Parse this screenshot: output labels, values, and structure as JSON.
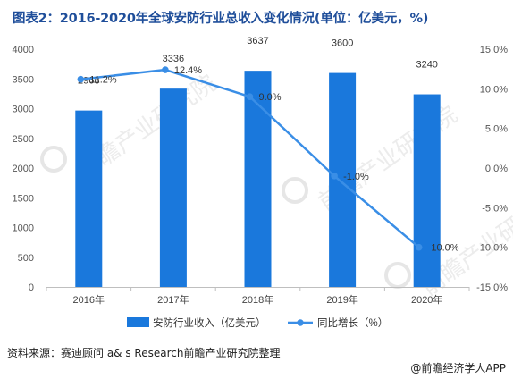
{
  "title": "图表2：2016-2020年全球安防行业总收入变化情况(单位：亿美元，%)",
  "source": "资料来源：赛迪顾问 a& s Research前瞻产业研究院整理",
  "credit": "@前瞻经济学人APP",
  "watermark": "前瞻产业研究院",
  "colors": {
    "bar": "#1a78dc",
    "line": "#3a8ee6",
    "title": "#1f4e9a"
  },
  "chart_data": {
    "type": "bar+line",
    "categories": [
      "2016年",
      "2017年",
      "2018年",
      "2019年",
      "2020年"
    ],
    "series": [
      {
        "name": "安防行业收入（亿美元）",
        "type": "bar",
        "axis": "left",
        "values": [
          2968,
          3336,
          3637,
          3600,
          3240
        ],
        "labels": [
          "2968",
          "3336",
          "3637",
          "3600",
          "3240"
        ]
      },
      {
        "name": "同比增长（%）",
        "type": "line",
        "axis": "right",
        "values": [
          11.2,
          12.4,
          9.0,
          -1.0,
          -10.0
        ],
        "labels": [
          "11.2%",
          "12.4%",
          "9.0%",
          "-1.0%",
          "-10.0%"
        ]
      }
    ],
    "y_left": {
      "min": 0,
      "max": 4000,
      "ticks": [
        "0",
        "500",
        "1000",
        "1500",
        "2000",
        "2500",
        "3000",
        "3500",
        "4000"
      ]
    },
    "y_right": {
      "min": -15,
      "max": 15,
      "ticks": [
        "-15.0%",
        "-10.0%",
        "-5.0%",
        "0.0%",
        "5.0%",
        "10.0%",
        "15.0%"
      ]
    },
    "grid": false,
    "legend_position": "bottom-center"
  }
}
